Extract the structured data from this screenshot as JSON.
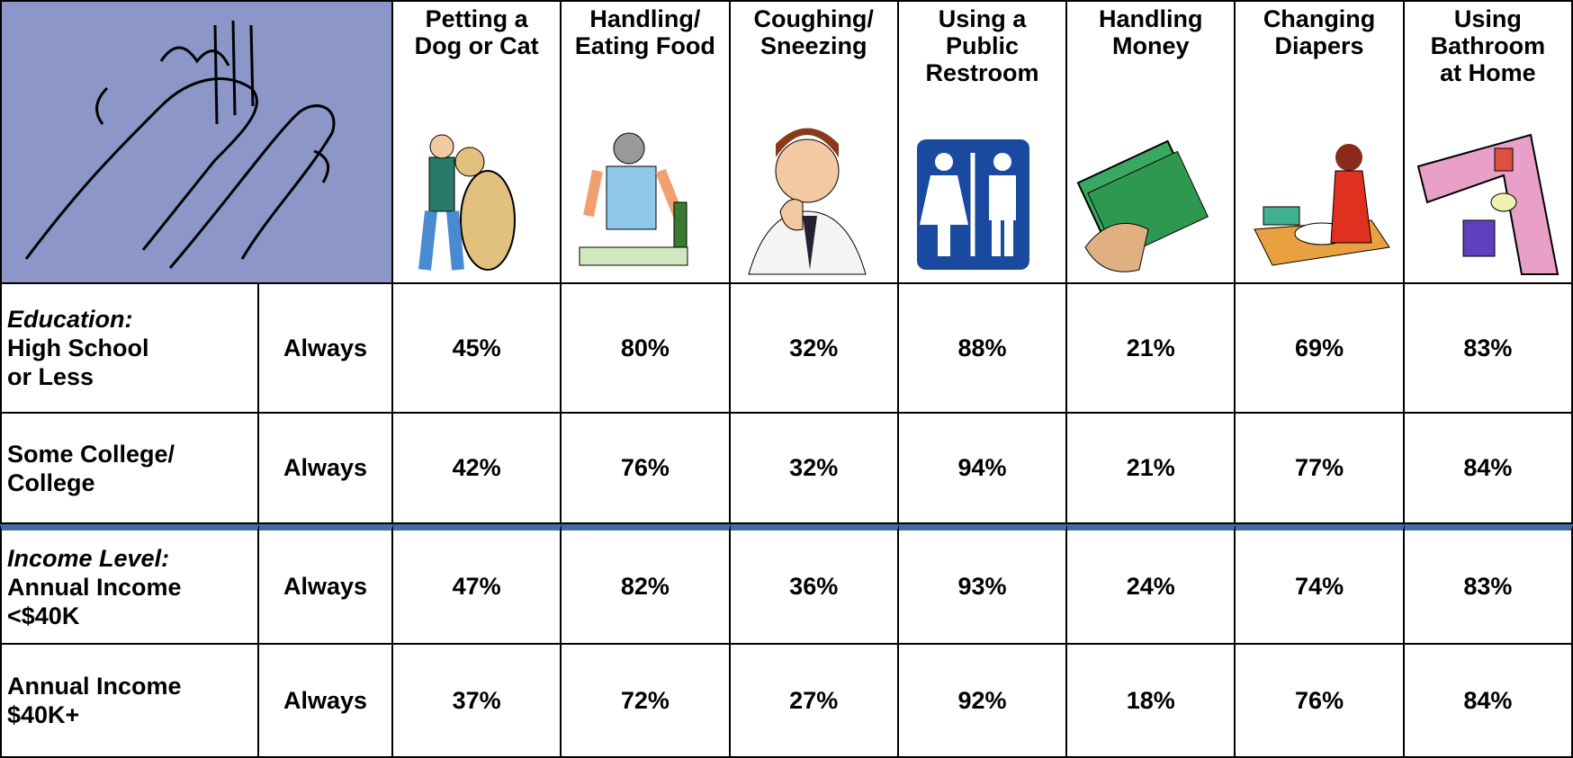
{
  "table": {
    "columns": [
      "Petting a\nDog or Cat",
      "Handling/\nEating Food",
      "Coughing/\nSneezing",
      "Using a\nPublic\nRestroom",
      "Handling\nMoney",
      "Changing\nDiapers",
      "Using\nBathroom\nat Home"
    ],
    "rows": [
      {
        "group": "Education:",
        "label": "High School\nor Less",
        "frequency": "Always",
        "cells": [
          "45%",
          "80%",
          "32%",
          "88%",
          "21%",
          "69%",
          "83%"
        ]
      },
      {
        "label": "Some College/\nCollege",
        "frequency": "Always",
        "cells": [
          "42%",
          "76%",
          "32%",
          "94%",
          "21%",
          "77%",
          "84%"
        ]
      },
      {
        "group": "Income Level:",
        "label": "Annual Income\n<$40K",
        "frequency": "Always",
        "cells": [
          "47%",
          "82%",
          "36%",
          "93%",
          "24%",
          "74%",
          "83%"
        ]
      },
      {
        "label": "Annual Income\n$40K+",
        "frequency": "Always",
        "cells": [
          "37%",
          "72%",
          "27%",
          "92%",
          "18%",
          "76%",
          "84%"
        ]
      }
    ]
  }
}
